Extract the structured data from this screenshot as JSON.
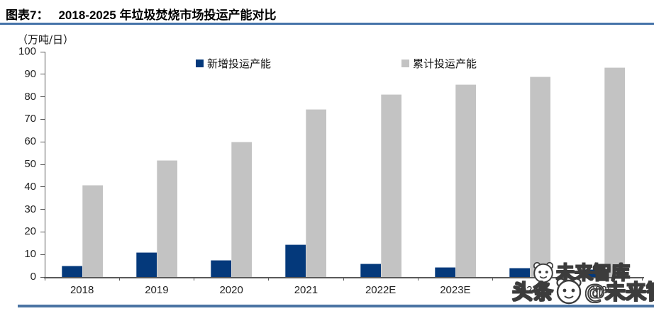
{
  "header": {
    "prefix": "图表7：",
    "title": "2018-2025 年垃圾焚烧市场投运产能对比"
  },
  "watermark": {
    "top_text": "未来智库",
    "bottom_left": "头条",
    "bottom_right": "@未来智库",
    "logo": "panda-face-icon"
  },
  "colors": {
    "new_capacity_blue": "#04397B",
    "cumulative_gray": "#C3C3C3",
    "title_rule": "#4573A9",
    "bottom_rule": "#4B74A3",
    "axis": "#595959"
  },
  "chart_data": {
    "type": "bar",
    "title": "2018-2025 年垃圾焚烧市场投运产能对比",
    "unit_label": "（万吨/日）",
    "ylabel": "万吨/日",
    "xlabel": "",
    "categories": [
      "2018",
      "2019",
      "2020",
      "2021",
      "2022E",
      "2023E",
      "2024E",
      "2025E"
    ],
    "series": [
      {
        "name": "新增投运产能",
        "color": "#04397B",
        "values": [
          5,
          11,
          7.5,
          14.5,
          6,
          4.5,
          4,
          3.5
        ]
      },
      {
        "name": "累计投运产能",
        "color": "#C3C3C3",
        "values": [
          41,
          52,
          60,
          74.5,
          81,
          85.5,
          89,
          93
        ]
      }
    ],
    "ylim": [
      0,
      100
    ],
    "ytick_step": 10,
    "grid": false,
    "legend_position": "top-center"
  }
}
